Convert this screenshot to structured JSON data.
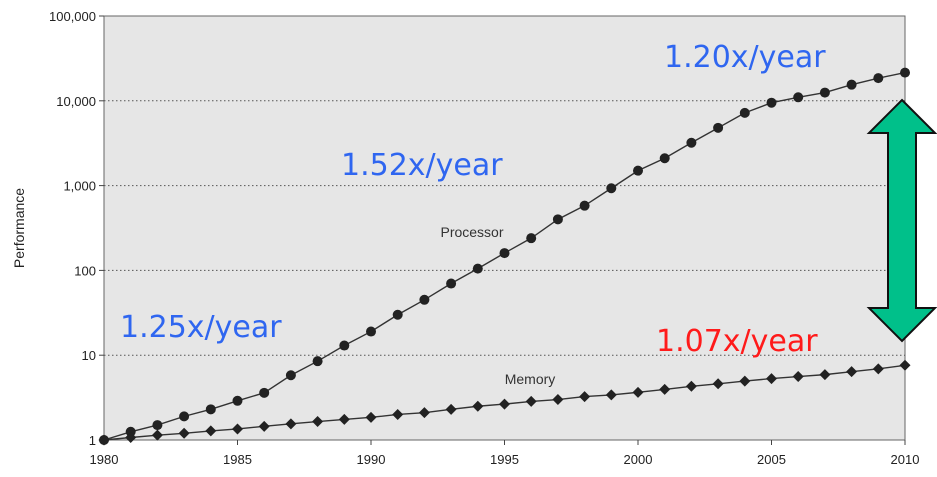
{
  "chart_data": {
    "type": "line",
    "ylabel": "Performance",
    "xlabel": "",
    "y_scale": "log",
    "ylim": [
      1,
      100000
    ],
    "xlim": [
      1980,
      2010
    ],
    "x_ticks": [
      "1980",
      "1985",
      "1990",
      "1995",
      "2000",
      "2005",
      "2010"
    ],
    "y_ticks": [
      "1",
      "10",
      "100",
      "1,000",
      "10,000",
      "100,000"
    ],
    "grid": "horizontal dotted",
    "x": [
      1980,
      1981,
      1982,
      1983,
      1984,
      1985,
      1986,
      1987,
      1988,
      1989,
      1990,
      1991,
      1992,
      1993,
      1994,
      1995,
      1996,
      1997,
      1998,
      1999,
      2000,
      2001,
      2002,
      2003,
      2004,
      2005,
      2006,
      2007,
      2008,
      2009,
      2010
    ],
    "series": [
      {
        "name": "Processor",
        "marker": "circle",
        "values": [
          1,
          1.25,
          1.5,
          1.9,
          2.3,
          2.9,
          3.6,
          5.8,
          8.5,
          13,
          19,
          30,
          45,
          70,
          105,
          160,
          240,
          400,
          580,
          930,
          1500,
          2100,
          3200,
          4800,
          7200,
          9500,
          11000,
          12500,
          15500,
          18500,
          21500
        ]
      },
      {
        "name": "Memory",
        "marker": "diamond",
        "values": [
          1,
          1.07,
          1.14,
          1.2,
          1.28,
          1.35,
          1.45,
          1.55,
          1.65,
          1.75,
          1.85,
          2.0,
          2.1,
          2.3,
          2.5,
          2.65,
          2.85,
          3.0,
          3.25,
          3.4,
          3.65,
          3.95,
          4.3,
          4.6,
          4.95,
          5.3,
          5.6,
          5.9,
          6.4,
          6.9,
          7.6
        ]
      }
    ],
    "annotations": [
      {
        "text": "1.25x/year",
        "color": "#2f66f0"
      },
      {
        "text": "1.52x/year",
        "color": "#2f66f0"
      },
      {
        "text": "1.20x/year",
        "color": "#2f66f0"
      },
      {
        "text": "1.07x/year",
        "color": "#ff1a1a"
      }
    ],
    "gap_arrow": {
      "fill": "#00c08a",
      "stroke": "#111111"
    },
    "colors": {
      "plot_bg": "#e6e6e6",
      "line": "#333333",
      "marker": "#222222"
    }
  }
}
